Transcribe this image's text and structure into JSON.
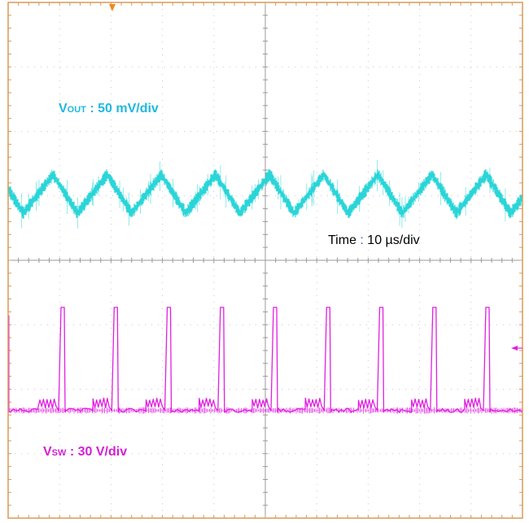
{
  "chart_data": {
    "type": "line",
    "grid": true,
    "grid_divisions": {
      "x": 10,
      "y": 8
    },
    "colors": {
      "frame": "#d89a5a",
      "grid": "#c8c8c8",
      "vout": "#1fd3d6",
      "vsw": "#e020e0",
      "time_colon": "#1f5fe0",
      "background": "#ffffff"
    },
    "channels": {
      "vout": {
        "label_main": "V",
        "label_sub": "OUT",
        "label_scale": " : 50 mV/div",
        "scale_mv_per_div": 50,
        "color": "#1fd3d6",
        "waveform": "triangle ripple",
        "ripple_peak_to_peak_div": 0.6,
        "cycles_on_screen": 9.5
      },
      "vsw": {
        "label_main": "V",
        "label_sub": "SW",
        "label_scale": " : 30 V/div",
        "scale_v_per_div": 30,
        "color": "#e020e0",
        "waveform": "switch pulses with ringing",
        "pulse_height_div": 1.6,
        "pulses_on_screen": 9
      }
    },
    "time": {
      "label_prefix": "Time ",
      "label_colon": ":",
      "label_value": " 10 µs/div",
      "us_per_div": 10
    },
    "markers": {
      "trigger": "trigger-arrow-icon",
      "ch2_level": "level-arrow-icon"
    }
  }
}
